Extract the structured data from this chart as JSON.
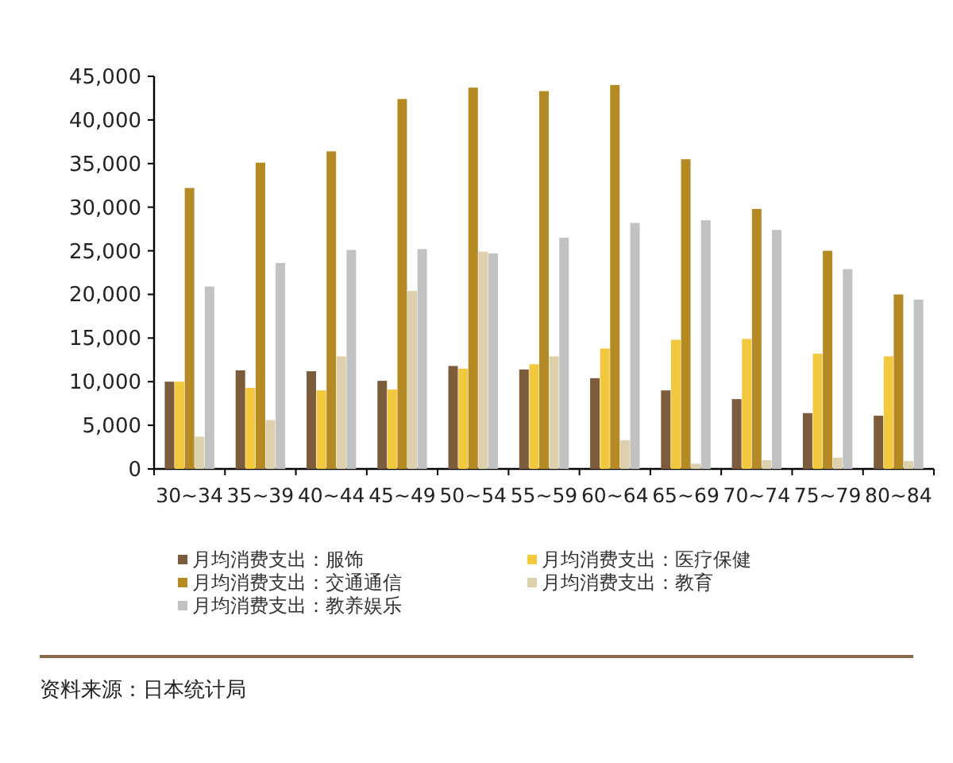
{
  "chart_data": {
    "type": "bar",
    "categories": [
      "30~34",
      "35~39",
      "40~44",
      "45~49",
      "50~54",
      "55~59",
      "60~64",
      "65~69",
      "70~74",
      "75~79",
      "80~84"
    ],
    "series": [
      {
        "name": "月均消费支出：服饰",
        "color": "#7d5c3c",
        "values": [
          10000,
          11300,
          11200,
          10100,
          11800,
          11400,
          10400,
          9000,
          8000,
          6400,
          6100
        ]
      },
      {
        "name": "月均消费支出：医疗保健",
        "color": "#f2c83f",
        "values": [
          10000,
          9300,
          9000,
          9100,
          11500,
          12000,
          13800,
          14800,
          14900,
          13200,
          12900
        ]
      },
      {
        "name": "月均消费支出：交通通信",
        "color": "#b58a25",
        "values": [
          32200,
          35100,
          36400,
          42400,
          43700,
          43300,
          44000,
          35500,
          29800,
          25000,
          20000
        ]
      },
      {
        "name": "月均消费支出：教育",
        "color": "#dcd0ad",
        "values": [
          3700,
          5600,
          12900,
          20400,
          24900,
          12900,
          3300,
          600,
          1000,
          1300,
          900
        ]
      },
      {
        "name": "月均消费支出：教养娱乐",
        "color": "#c2c2c2",
        "values": [
          20900,
          23600,
          25100,
          25200,
          24700,
          26500,
          28200,
          28500,
          27400,
          22900,
          19400
        ]
      }
    ],
    "ylim": [
      0,
      45000
    ],
    "yticks": [
      0,
      {
        "value": 5000,
        "label": "5,000"
      },
      {
        "value": 10000,
        "label": "10,000"
      },
      {
        "value": 15000,
        "label": "15,000"
      },
      {
        "value": 20000,
        "label": "20,000"
      },
      {
        "value": 25000,
        "label": "25,000"
      },
      {
        "value": 30000,
        "label": "30,000"
      },
      {
        "value": 35000,
        "label": "35,000"
      },
      {
        "value": 40000,
        "label": "40,000"
      },
      {
        "value": 45000,
        "label": "45,000"
      }
    ],
    "legend": "bottom",
    "annotations": [
      "资料来源：日本统计局"
    ]
  }
}
